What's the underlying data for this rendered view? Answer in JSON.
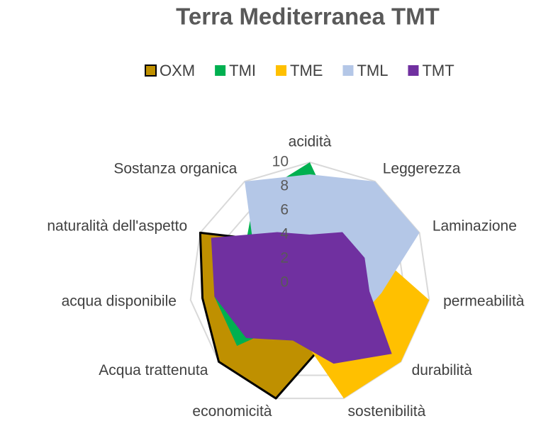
{
  "chart_data": {
    "type": "radar",
    "title": "Terra Mediterranea TMT",
    "categories": [
      "acidità",
      "Leggerezza",
      "Laminazione",
      "permeabilità",
      "durabilità",
      "sostenibilità",
      "economicità",
      "Acqua trattenuta",
      "acqua disponibile",
      "naturalità dell'aspetto",
      "Sostanza organica"
    ],
    "ylim": [
      0,
      10
    ],
    "yticks": [
      0,
      2,
      4,
      6,
      8,
      10
    ],
    "grid": true,
    "legend": "top",
    "series": [
      {
        "name": "OXM",
        "color": "#bf9000",
        "values": [
          3,
          3,
          3,
          3,
          4,
          5,
          10,
          10,
          9,
          10,
          4
        ]
      },
      {
        "name": "TMI",
        "color": "#00b050",
        "values": [
          10,
          5,
          4,
          4,
          4,
          4,
          3,
          8,
          8,
          6,
          8.5
        ]
      },
      {
        "name": "TME",
        "color": "#ffc000",
        "values": [
          4,
          5,
          6,
          10,
          10,
          10,
          4,
          3,
          4,
          5,
          4
        ]
      },
      {
        "name": "TML",
        "color": "#b4c7e7",
        "values": [
          9,
          10,
          10,
          6,
          5,
          3,
          2,
          3,
          4,
          5,
          10
        ]
      },
      {
        "name": "TMT",
        "color": "#7030a0",
        "values": [
          4,
          5,
          5,
          5,
          9,
          7,
          5,
          7,
          8,
          9,
          5
        ]
      }
    ]
  }
}
